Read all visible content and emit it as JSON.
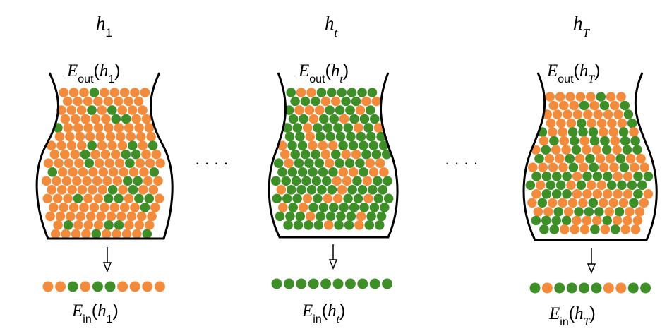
{
  "colors": {
    "orange": "#F28C3C",
    "green": "#3F8F29",
    "outline": "#000000"
  },
  "ellipsis": "· · · ·",
  "hypotheses": [
    {
      "name": {
        "base": "h",
        "sub": "1",
        "sub_italic": false
      },
      "eout": {
        "E": "E",
        "sub": "out",
        "open": "(",
        "h": "h",
        "hsub": "1",
        "hsub_italic": false,
        "close": ")"
      },
      "ein": {
        "E": "E",
        "sub": "in",
        "open": "(",
        "h": "h",
        "hsub": "1",
        "hsub_italic": false,
        "close": ")"
      },
      "green_fraction": 0.18,
      "sample": [
        "orange",
        "orange",
        "green",
        "orange",
        "green",
        "green",
        "orange",
        "orange",
        "orange",
        "orange"
      ]
    },
    {
      "name": {
        "base": "h",
        "sub": "t",
        "sub_italic": true
      },
      "eout": {
        "E": "E",
        "sub": "out",
        "open": "(",
        "h": "h",
        "hsub": "t",
        "hsub_italic": true,
        "close": ")"
      },
      "ein": {
        "E": "E",
        "sub": "in",
        "open": "(",
        "h": "h",
        "hsub": "t",
        "hsub_italic": true,
        "close": ")"
      },
      "green_fraction": 0.72,
      "sample": [
        "green",
        "green",
        "green",
        "green",
        "green",
        "green",
        "green",
        "green",
        "green",
        "green"
      ]
    },
    {
      "name": {
        "base": "h",
        "sub": "T",
        "sub_italic": true
      },
      "eout": {
        "E": "E",
        "sub": "out",
        "open": "(",
        "h": "h",
        "hsub": "T",
        "hsub_italic": true,
        "close": ")"
      },
      "ein": {
        "E": "E",
        "sub": "in",
        "open": "(",
        "h": "h",
        "hsub": "T",
        "hsub_italic": true,
        "close": ")"
      },
      "green_fraction": 0.45,
      "sample": [
        "green",
        "orange",
        "green",
        "green",
        "green",
        "green",
        "orange",
        "orange",
        "green",
        "green"
      ]
    }
  ]
}
